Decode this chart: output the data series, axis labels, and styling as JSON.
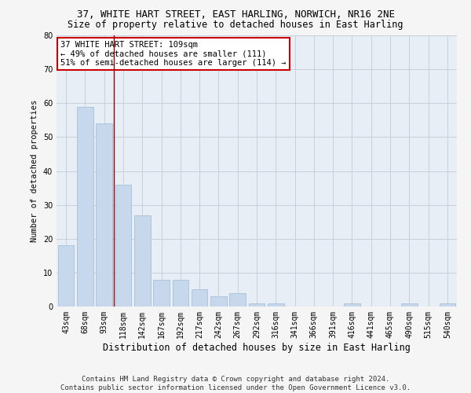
{
  "title": "37, WHITE HART STREET, EAST HARLING, NORWICH, NR16 2NE",
  "subtitle": "Size of property relative to detached houses in East Harling",
  "xlabel": "Distribution of detached houses by size in East Harling",
  "ylabel": "Number of detached properties",
  "categories": [
    "43sqm",
    "68sqm",
    "93sqm",
    "118sqm",
    "142sqm",
    "167sqm",
    "192sqm",
    "217sqm",
    "242sqm",
    "267sqm",
    "292sqm",
    "316sqm",
    "341sqm",
    "366sqm",
    "391sqm",
    "416sqm",
    "441sqm",
    "465sqm",
    "490sqm",
    "515sqm",
    "540sqm"
  ],
  "values": [
    18,
    59,
    54,
    36,
    27,
    8,
    8,
    5,
    3,
    4,
    1,
    1,
    0,
    0,
    0,
    1,
    0,
    0,
    1,
    0,
    1
  ],
  "bar_color": "#c8d8ec",
  "bar_edge_color": "#a8c0d8",
  "vline_x": 2.5,
  "vline_color": "#990000",
  "ylim": [
    0,
    80
  ],
  "yticks": [
    0,
    10,
    20,
    30,
    40,
    50,
    60,
    70,
    80
  ],
  "annotation_text": "37 WHITE HART STREET: 109sqm\n← 49% of detached houses are smaller (111)\n51% of semi-detached houses are larger (114) →",
  "annotation_box_color": "#ffffff",
  "annotation_box_edge": "#cc0000",
  "footer_line1": "Contains HM Land Registry data © Crown copyright and database right 2024.",
  "footer_line2": "Contains public sector information licensed under the Open Government Licence v3.0.",
  "background_color": "#e8eef5",
  "grid_color": "#c0ccd8",
  "fig_background": "#f5f5f5",
  "title_fontsize": 9,
  "subtitle_fontsize": 8.5,
  "xlabel_fontsize": 8.5,
  "ylabel_fontsize": 7.5,
  "tick_fontsize": 7,
  "footer_fontsize": 6.5,
  "annot_fontsize": 7.5
}
